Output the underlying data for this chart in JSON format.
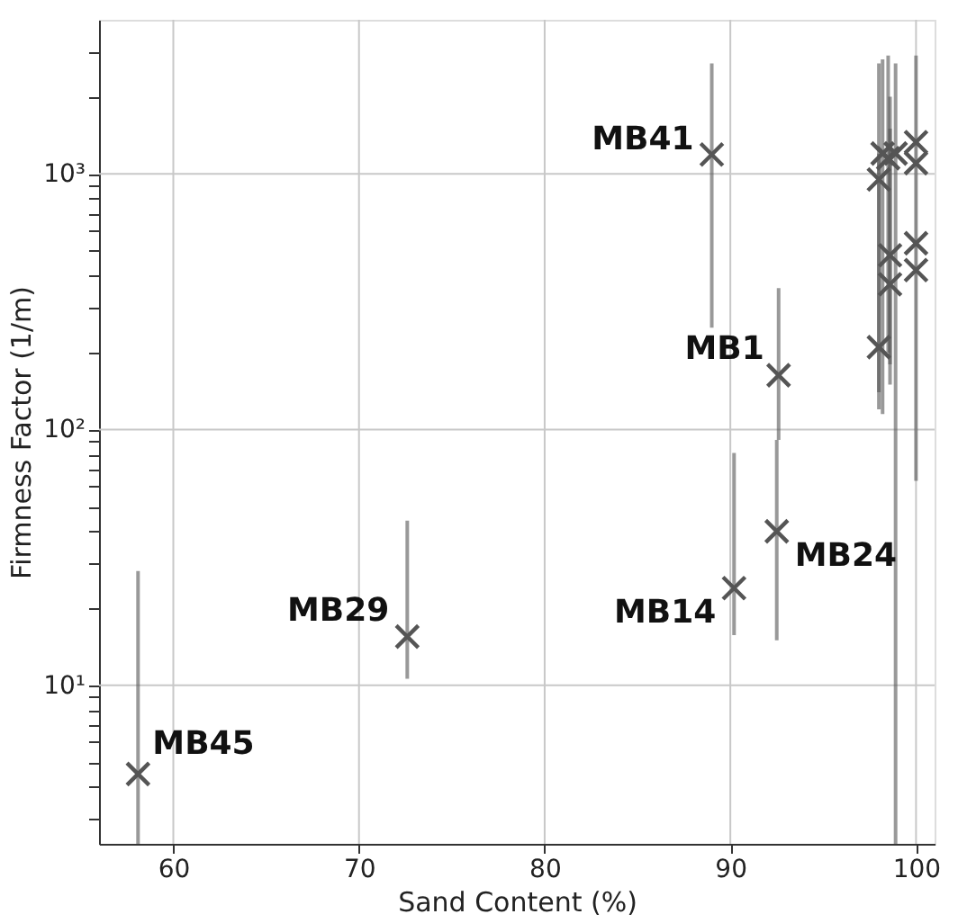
{
  "chart_data": {
    "type": "scatter",
    "xlabel": "Sand Content (%)",
    "ylabel": "Firmness Factor (1/m)",
    "log": "y",
    "grid": true,
    "marker": "cross",
    "xlim": [
      56,
      101
    ],
    "xticks": [
      60,
      70,
      80,
      90,
      100
    ],
    "ylim": [
      2.4,
      4000
    ],
    "yticks": [
      {
        "value": 3,
        "label": null
      },
      {
        "value": 4,
        "label": null
      },
      {
        "value": 5,
        "label": null
      },
      {
        "value": 6,
        "label": null
      },
      {
        "value": 7,
        "label": null
      },
      {
        "value": 8,
        "label": null
      },
      {
        "value": 9,
        "label": null
      },
      {
        "value": 10,
        "label": "10¹"
      },
      {
        "value": 20,
        "label": null
      },
      {
        "value": 30,
        "label": null
      },
      {
        "value": 40,
        "label": null
      },
      {
        "value": 50,
        "label": null
      },
      {
        "value": 60,
        "label": null
      },
      {
        "value": 70,
        "label": null
      },
      {
        "value": 80,
        "label": null
      },
      {
        "value": 90,
        "label": null
      },
      {
        "value": 100,
        "label": "10²"
      },
      {
        "value": 200,
        "label": null
      },
      {
        "value": 300,
        "label": null
      },
      {
        "value": 400,
        "label": null
      },
      {
        "value": 500,
        "label": null
      },
      {
        "value": 600,
        "label": null
      },
      {
        "value": 700,
        "label": null
      },
      {
        "value": 800,
        "label": null
      },
      {
        "value": 900,
        "label": null
      },
      {
        "value": 1000,
        "label": "10³"
      },
      {
        "value": 2000,
        "label": null
      },
      {
        "value": 3000,
        "label": null
      }
    ],
    "series": [
      {
        "color": "#555555",
        "x": [
          58.1,
          72.6,
          90.2,
          92.5,
          92.6,
          89.0,
          98.2,
          98.0,
          98.5,
          98.9,
          100,
          100,
          98.6,
          100,
          100,
          98.6,
          98.0
        ],
        "values": [
          4.5,
          15.5,
          24,
          40,
          163,
          1190,
          1200,
          950,
          1150,
          1200,
          1330,
          1100,
          480,
          535,
          420,
          370,
          210
        ],
        "errors": [
          [
            2.4,
            28
          ],
          [
            10.6,
            44
          ],
          [
            15.7,
            81
          ],
          [
            15,
            91
          ],
          [
            91,
            357
          ],
          [
            250,
            2700
          ],
          [
            115,
            2800
          ],
          [
            140,
            2700
          ],
          [
            200,
            2900
          ],
          [
            2.4,
            2700
          ],
          [
            63,
            2900
          ],
          null,
          [
            180,
            2000
          ],
          null,
          null,
          [
            150,
            1500
          ],
          [
            120,
            1200
          ]
        ]
      }
    ],
    "annotations": [
      {
        "text": "MB45",
        "x": 58.1,
        "y": 4.5
      },
      {
        "text": "MB29",
        "x": 72.6,
        "y": 15.5
      },
      {
        "text": "MB14",
        "x": 90.2,
        "y": 24
      },
      {
        "text": "MB24",
        "x": 92.5,
        "y": 40
      },
      {
        "text": "MB1",
        "x": 92.6,
        "y": 163
      },
      {
        "text": "MB41",
        "x": 89.0,
        "y": 1190
      }
    ]
  }
}
